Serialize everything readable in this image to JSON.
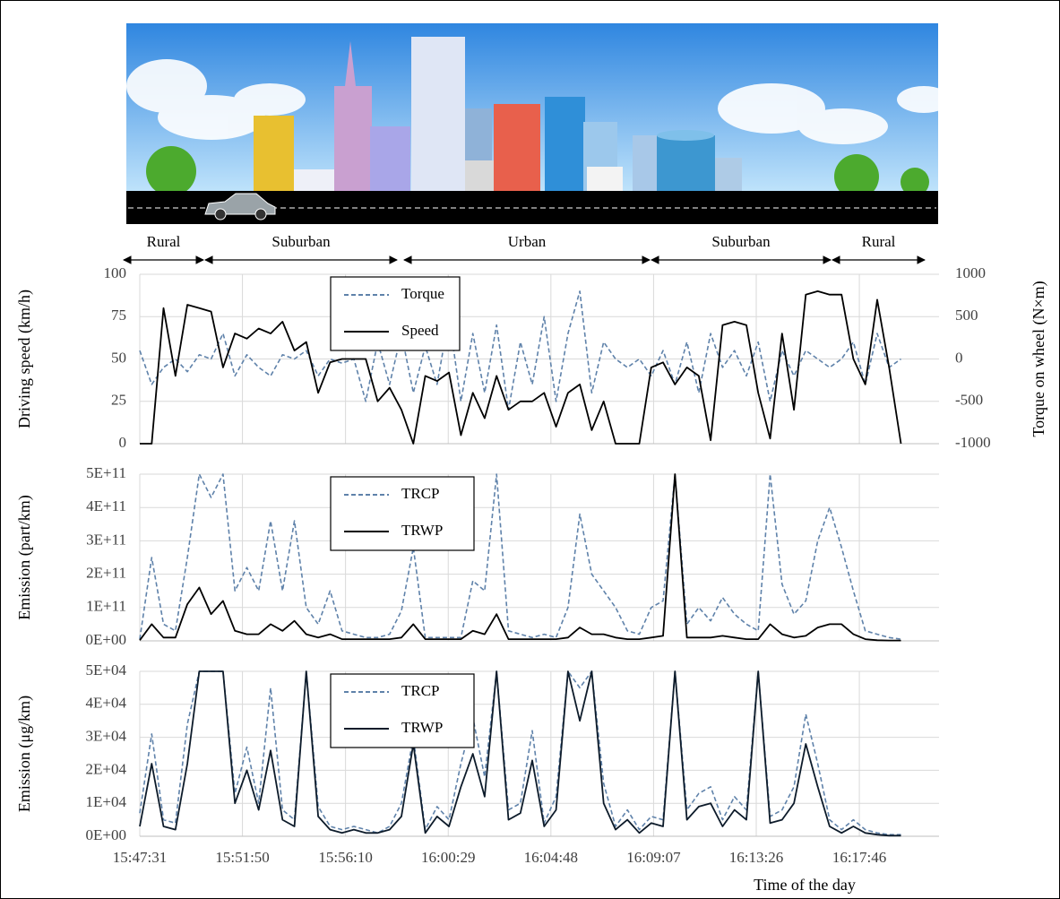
{
  "zones": [
    "Rural",
    "Suburban",
    "Urban",
    "Suburban",
    "Rural"
  ],
  "chart_data": [
    {
      "type": "line",
      "ylabel": "Driving speed (km/h)",
      "y2label": "Torque on wheel (N×m)",
      "x": [
        "15:47:31",
        "15:48:01",
        "15:48:31",
        "15:49:01",
        "15:49:31",
        "15:50:01",
        "15:50:31",
        "15:51:01",
        "15:51:31",
        "15:52:01",
        "15:52:31",
        "15:53:01",
        "15:53:31",
        "15:54:01",
        "15:54:31",
        "15:55:01",
        "15:55:31",
        "15:56:01",
        "15:56:31",
        "15:57:01",
        "15:57:31",
        "15:58:01",
        "15:58:31",
        "15:59:01",
        "15:59:31",
        "16:00:01",
        "16:00:31",
        "16:01:01",
        "16:01:31",
        "16:02:01",
        "16:02:31",
        "16:03:01",
        "16:03:31",
        "16:04:01",
        "16:04:31",
        "16:05:01",
        "16:05:31",
        "16:06:01",
        "16:06:31",
        "16:07:01",
        "16:07:31",
        "16:08:01",
        "16:08:31",
        "16:09:01",
        "16:09:31",
        "16:10:01",
        "16:10:31",
        "16:11:01",
        "16:11:31",
        "16:12:01",
        "16:12:31",
        "16:13:01",
        "16:13:31",
        "16:14:01",
        "16:14:31",
        "16:15:01",
        "16:15:31",
        "16:16:01",
        "16:16:31",
        "16:17:01",
        "16:17:31",
        "16:18:01",
        "16:18:31",
        "16:19:01",
        "16:19:31"
      ],
      "series": [
        {
          "name": "Torque",
          "color": "#5f82aa",
          "linestyle": "dashed",
          "axis": "y2",
          "values": [
            100,
            -300,
            -100,
            0,
            -150,
            50,
            0,
            300,
            -200,
            50,
            -100,
            -200,
            50,
            0,
            100,
            -200,
            0,
            -50,
            0,
            -500,
            200,
            -300,
            300,
            -400,
            150,
            -300,
            500,
            -500,
            300,
            -400,
            400,
            -600,
            200,
            -300,
            500,
            -500,
            300,
            800,
            -400,
            200,
            0,
            -100,
            0,
            -200,
            100,
            -300,
            200,
            -400,
            300,
            -100,
            100,
            -200,
            200,
            -500,
            100,
            -200,
            100,
            0,
            -100,
            0,
            200,
            -300,
            300,
            -100,
            0
          ]
        },
        {
          "name": "Speed",
          "color": "#000000",
          "linestyle": "solid",
          "values": [
            0,
            0,
            80,
            40,
            82,
            80,
            78,
            45,
            65,
            62,
            68,
            65,
            72,
            55,
            60,
            30,
            48,
            50,
            50,
            50,
            25,
            33,
            20,
            0,
            40,
            37,
            42,
            5,
            30,
            15,
            40,
            20,
            25,
            25,
            30,
            10,
            30,
            35,
            8,
            25,
            0,
            0,
            0,
            45,
            48,
            35,
            45,
            40,
            2,
            70,
            72,
            70,
            30,
            3,
            65,
            20,
            88,
            90,
            88,
            88,
            50,
            35,
            85,
            45,
            0
          ]
        }
      ],
      "xlim": [
        "15:47:31",
        "16:21:07"
      ],
      "xticks": [
        "15:47:31",
        "15:51:50",
        "15:56:10",
        "16:00:29",
        "16:04:48",
        "16:09:07",
        "16:13:26",
        "16:17:46"
      ],
      "ylim": [
        0,
        100
      ],
      "yticks": [
        0,
        25,
        50,
        75,
        100
      ],
      "y2lim": [
        -1000,
        1000
      ],
      "y2ticks": [
        -1000,
        -500,
        0,
        500,
        1000
      ],
      "grid": true
    },
    {
      "type": "line",
      "ylabel": "Emission (part/km)",
      "x": [
        "15:47:31",
        "15:48:01",
        "15:48:31",
        "15:49:01",
        "15:49:31",
        "15:50:01",
        "15:50:31",
        "15:51:01",
        "15:51:31",
        "15:52:01",
        "15:52:31",
        "15:53:01",
        "15:53:31",
        "15:54:01",
        "15:54:31",
        "15:55:01",
        "15:55:31",
        "15:56:01",
        "15:56:31",
        "15:57:01",
        "15:57:31",
        "15:58:01",
        "15:58:31",
        "15:59:01",
        "15:59:31",
        "16:00:01",
        "16:00:31",
        "16:01:01",
        "16:01:31",
        "16:02:01",
        "16:02:31",
        "16:03:01",
        "16:03:31",
        "16:04:01",
        "16:04:31",
        "16:05:01",
        "16:05:31",
        "16:06:01",
        "16:06:31",
        "16:07:01",
        "16:07:31",
        "16:08:01",
        "16:08:31",
        "16:09:01",
        "16:09:31",
        "16:10:01",
        "16:10:31",
        "16:11:01",
        "16:11:31",
        "16:12:01",
        "16:12:31",
        "16:13:01",
        "16:13:31",
        "16:14:01",
        "16:14:31",
        "16:15:01",
        "16:15:31",
        "16:16:01",
        "16:16:31",
        "16:17:01",
        "16:17:31",
        "16:18:01",
        "16:18:31",
        "16:19:01",
        "16:19:31"
      ],
      "series": [
        {
          "name": "TRCP",
          "color": "#5f82aa",
          "linestyle": "dashed",
          "values": [
            5000000000.0,
            250000000000.0,
            50000000000.0,
            30000000000.0,
            250000000000.0,
            500000000000.0,
            430000000000.0,
            500000000000.0,
            150000000000.0,
            220000000000.0,
            150000000000.0,
            360000000000.0,
            150000000000.0,
            360000000000.0,
            100000000000.0,
            50000000000.0,
            150000000000.0,
            30000000000.0,
            20000000000.0,
            10000000000.0,
            10000000000.0,
            20000000000.0,
            90000000000.0,
            280000000000.0,
            10000000000.0,
            10000000000.0,
            10000000000.0,
            10000000000.0,
            180000000000.0,
            150000000000.0,
            500000000000.0,
            30000000000.0,
            20000000000.0,
            10000000000.0,
            20000000000.0,
            10000000000.0,
            100000000000.0,
            380000000000.0,
            200000000000.0,
            150000000000.0,
            100000000000.0,
            30000000000.0,
            20000000000.0,
            100000000000.0,
            120000000000.0,
            500000000000.0,
            50000000000.0,
            100000000000.0,
            60000000000.0,
            130000000000.0,
            80000000000.0,
            50000000000.0,
            30000000000.0,
            500000000000.0,
            170000000000.0,
            80000000000.0,
            120000000000.0,
            300000000000.0,
            400000000000.0,
            280000000000.0,
            150000000000.0,
            30000000000.0,
            20000000000.0,
            10000000000.0,
            5000000000.0
          ]
        },
        {
          "name": "TRWP",
          "color": "#000000",
          "linestyle": "solid",
          "values": [
            2000000000.0,
            50000000000.0,
            10000000000.0,
            10000000000.0,
            110000000000.0,
            160000000000.0,
            80000000000.0,
            120000000000.0,
            30000000000.0,
            20000000000.0,
            20000000000.0,
            50000000000.0,
            30000000000.0,
            60000000000.0,
            20000000000.0,
            10000000000.0,
            20000000000.0,
            5000000000.0,
            5000000000.0,
            5000000000.0,
            5000000000.0,
            5000000000.0,
            10000000000.0,
            50000000000.0,
            5000000000.0,
            5000000000.0,
            5000000000.0,
            5000000000.0,
            30000000000.0,
            20000000000.0,
            80000000000.0,
            5000000000.0,
            5000000000.0,
            5000000000.0,
            5000000000.0,
            5000000000.0,
            10000000000.0,
            40000000000.0,
            20000000000.0,
            20000000000.0,
            10000000000.0,
            5000000000.0,
            5000000000.0,
            10000000000.0,
            15000000000.0,
            500000000000.0,
            10000000000.0,
            10000000000.0,
            10000000000.0,
            15000000000.0,
            10000000000.0,
            5000000000.0,
            5000000000.0,
            50000000000.0,
            20000000000.0,
            10000000000.0,
            15000000000.0,
            40000000000.0,
            50000000000.0,
            50000000000.0,
            20000000000.0,
            5000000000.0,
            2000000000.0,
            1000000000.0,
            1000000000.0
          ]
        }
      ],
      "xlim": [
        "15:47:31",
        "16:21:07"
      ],
      "xticks": [
        "15:47:31",
        "15:51:50",
        "15:56:10",
        "16:00:29",
        "16:04:48",
        "16:09:07",
        "16:13:26",
        "16:17:46"
      ],
      "ylim": [
        0,
        500000000000.0
      ],
      "yticks": [
        {
          "value": 0,
          "label": "0E+00"
        },
        {
          "value": 100000000000.0,
          "label": "1E+11"
        },
        {
          "value": 200000000000.0,
          "label": "2E+11"
        },
        {
          "value": 300000000000.0,
          "label": "3E+11"
        },
        {
          "value": 400000000000.0,
          "label": "4E+11"
        },
        {
          "value": 500000000000.0,
          "label": "5E+11"
        }
      ],
      "grid": true
    },
    {
      "type": "line",
      "ylabel": "Emission (μg/km)",
      "xlabel": "Time of the day",
      "x": [
        "15:47:31",
        "15:48:01",
        "15:48:31",
        "15:49:01",
        "15:49:31",
        "15:50:01",
        "15:50:31",
        "15:51:01",
        "15:51:31",
        "15:52:01",
        "15:52:31",
        "15:53:01",
        "15:53:31",
        "15:54:01",
        "15:54:31",
        "15:55:01",
        "15:55:31",
        "15:56:01",
        "15:56:31",
        "15:57:01",
        "15:57:31",
        "15:58:01",
        "15:58:31",
        "15:59:01",
        "15:59:31",
        "16:00:01",
        "16:00:31",
        "16:01:01",
        "16:01:31",
        "16:02:01",
        "16:02:31",
        "16:03:01",
        "16:03:31",
        "16:04:01",
        "16:04:31",
        "16:05:01",
        "16:05:31",
        "16:06:01",
        "16:06:31",
        "16:07:01",
        "16:07:31",
        "16:08:01",
        "16:08:31",
        "16:09:01",
        "16:09:31",
        "16:10:01",
        "16:10:31",
        "16:11:01",
        "16:11:31",
        "16:12:01",
        "16:12:31",
        "16:13:01",
        "16:13:31",
        "16:14:01",
        "16:14:31",
        "16:15:01",
        "16:15:31",
        "16:16:01",
        "16:16:31",
        "16:17:01",
        "16:17:31",
        "16:18:01",
        "16:18:31",
        "16:19:01",
        "16:19:31"
      ],
      "series": [
        {
          "name": "TRCP",
          "color": "#5f82aa",
          "linestyle": "dashed",
          "values": [
            7000,
            31000,
            5000,
            4000,
            34000,
            50000,
            50000,
            50000,
            13000,
            27000,
            10000,
            45000,
            8000,
            5000,
            50000,
            9000,
            3000,
            2000,
            3000,
            2000,
            1000,
            3000,
            10000,
            30000,
            2000,
            9000,
            5000,
            22000,
            36000,
            18000,
            50000,
            8000,
            10000,
            32000,
            4000,
            12000,
            50000,
            45000,
            50000,
            16000,
            3000,
            8000,
            2000,
            6000,
            5000,
            50000,
            8000,
            13000,
            15000,
            5000,
            12000,
            8000,
            50000,
            6000,
            8000,
            15000,
            37000,
            22000,
            5000,
            2000,
            5000,
            2000,
            1000,
            500,
            500
          ]
        },
        {
          "name": "TRWP",
          "color": "#0d1b2a",
          "linestyle": "solid",
          "values": [
            3000,
            22000,
            3000,
            2000,
            22000,
            50000,
            50000,
            50000,
            10000,
            20000,
            8000,
            26000,
            5000,
            3000,
            50000,
            6000,
            2000,
            1000,
            2000,
            1000,
            1000,
            2000,
            6000,
            28000,
            1000,
            6000,
            3000,
            15000,
            25000,
            12000,
            50000,
            5000,
            7000,
            23000,
            3000,
            8000,
            50000,
            35000,
            50000,
            10000,
            2000,
            5000,
            1000,
            4000,
            3000,
            50000,
            5000,
            9000,
            10000,
            3000,
            8000,
            5000,
            50000,
            4000,
            5000,
            10000,
            28000,
            15000,
            3000,
            1000,
            3000,
            1000,
            500,
            200,
            200
          ]
        }
      ],
      "xlim": [
        "15:47:31",
        "16:21:07"
      ],
      "xticks": [
        "15:47:31",
        "15:51:50",
        "15:56:10",
        "16:00:29",
        "16:04:48",
        "16:09:07",
        "16:13:26",
        "16:17:46"
      ],
      "ylim": [
        0,
        50000
      ],
      "yticks": [
        {
          "value": 0,
          "label": "0E+00"
        },
        {
          "value": 10000,
          "label": "1E+04"
        },
        {
          "value": 20000,
          "label": "2E+04"
        },
        {
          "value": 30000,
          "label": "3E+04"
        },
        {
          "value": 40000,
          "label": "4E+04"
        },
        {
          "value": 50000,
          "label": "5E+04"
        }
      ],
      "grid": true
    }
  ]
}
